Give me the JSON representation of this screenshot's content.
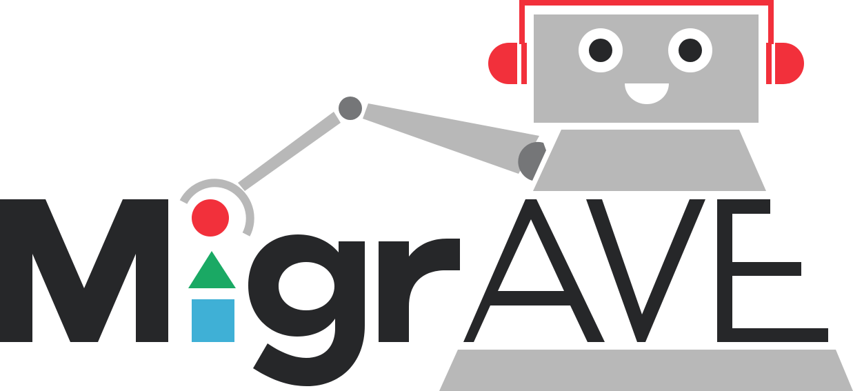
{
  "logo": {
    "name": "MigrAVE",
    "colors": {
      "text_dark": "#262729",
      "robot_gray": "#b8b8b8",
      "joint_gray": "#757678",
      "headphone_red": "#f2303b",
      "ball_red": "#f2303b",
      "triangle_green": "#1aa964",
      "square_blue": "#3fb0d6",
      "eye_dark": "#262729",
      "white": "#ffffff"
    },
    "icons": [
      "robot-head-icon",
      "headphones-icon",
      "robot-arm-icon",
      "red-circle-icon",
      "green-triangle-icon",
      "blue-square-icon"
    ]
  }
}
